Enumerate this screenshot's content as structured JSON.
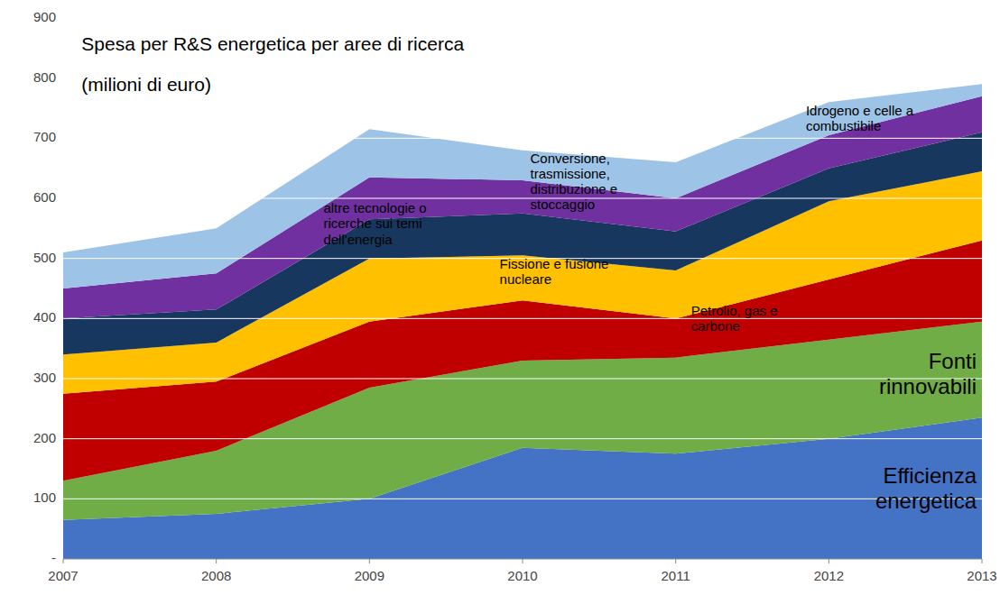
{
  "chart_data": {
    "type": "area",
    "stacked": true,
    "title": "Spesa per R&S energetica per aree di ricerca",
    "subtitle": "(milioni di euro)",
    "x": [
      2007,
      2008,
      2009,
      2010,
      2011,
      2012,
      2013
    ],
    "xlim": [
      2007,
      2013
    ],
    "xticks": [
      2007,
      2008,
      2009,
      2010,
      2011,
      2012,
      2013
    ],
    "ylim": [
      0,
      900
    ],
    "yticks": [
      {
        "value": 0,
        "label": "-"
      },
      100,
      200,
      300,
      400,
      500,
      600,
      700,
      800,
      900
    ],
    "grid": true,
    "series": [
      {
        "color": "#4472C4",
        "values": [
          65,
          75,
          100,
          185,
          175,
          200,
          235
        ]
      },
      {
        "color": "#70AD47",
        "values": [
          65,
          105,
          185,
          145,
          160,
          165,
          160
        ]
      },
      {
        "color": "#C00000",
        "values": [
          145,
          115,
          110,
          100,
          65,
          100,
          135
        ]
      },
      {
        "color": "#FFC000",
        "values": [
          65,
          65,
          105,
          75,
          80,
          130,
          115
        ]
      },
      {
        "color": "#17375E",
        "values": [
          60,
          55,
          65,
          70,
          65,
          55,
          65
        ]
      },
      {
        "color": "#7030A0",
        "values": [
          50,
          60,
          70,
          55,
          55,
          55,
          60
        ]
      },
      {
        "color": "#9DC3E6",
        "values": [
          60,
          75,
          80,
          50,
          60,
          55,
          20
        ]
      }
    ],
    "annotations": [
      {
        "text": "Efficienza\nenergetica",
        "x": 2013.0,
        "y": 118
      },
      {
        "text": "Fonti\nrinnovabili",
        "x": 2013.0,
        "y": 308
      },
      {
        "text": "Petrolio, gas e\ncarbone",
        "x": 2011.1,
        "y": 400
      },
      {
        "text": "Fissione e fusione\nnucleare",
        "x": 2009.85,
        "y": 478
      },
      {
        "text": "Conversione,\ntrasmissione,\ndistribuzione e\nstoccaggio",
        "x": 2010.05,
        "y": 628
      },
      {
        "text": "altre tecnologie o\nricerche sui temi\ndell'energia",
        "x": 2008.7,
        "y": 558
      },
      {
        "text": "Idrogeno e celle a\ncombustibile",
        "x": 2011.85,
        "y": 733
      }
    ]
  }
}
